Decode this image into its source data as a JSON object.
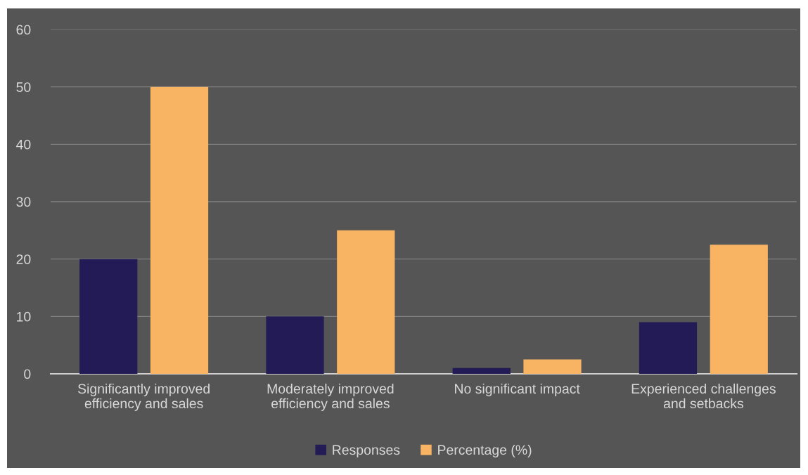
{
  "chart_data": {
    "type": "bar",
    "categories": [
      "Significantly improved efficiency and sales",
      "Moderately improved efficiency and sales",
      "No significant impact",
      "Experienced challenges and setbacks"
    ],
    "series": [
      {
        "name": "Responses",
        "color": "#221b55",
        "values": [
          20,
          10,
          1,
          9
        ]
      },
      {
        "name": "Percentage (%)",
        "color": "#f8b463",
        "values": [
          50,
          25,
          2.5,
          22.5
        ]
      }
    ],
    "ylim": [
      0,
      60
    ],
    "yticks": [
      0,
      10,
      20,
      30,
      40,
      50,
      60
    ],
    "grid": "y",
    "legend": "bottom"
  }
}
